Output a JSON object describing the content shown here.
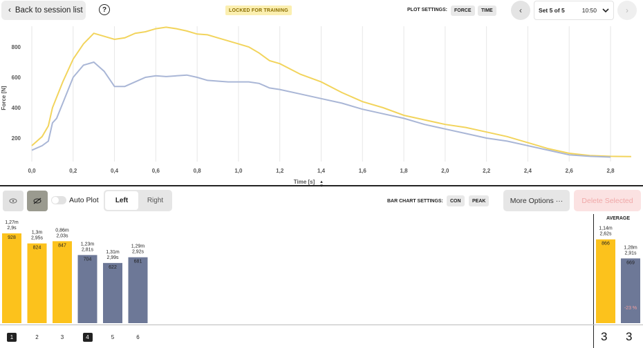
{
  "header": {
    "back_label": "Back to session list",
    "help_icon": "?",
    "locked_label": "LOCKED FOR TRAINING",
    "plot_settings_label": "PLOT SETTINGS:",
    "plot_chips": [
      "FORCE",
      "TIME"
    ],
    "set_label": "Set 5 of 5",
    "set_time": "10:50"
  },
  "chart_data": {
    "type": "line",
    "xlabel": "Time [s]",
    "ylabel": "Force [N]",
    "xlim": [
      0,
      2.9
    ],
    "ylim": [
      0,
      1000
    ],
    "x_ticks": [
      "0,0",
      "0,2",
      "0,4",
      "0,6",
      "0,8",
      "1,0",
      "1,2",
      "1,4",
      "1,6",
      "1,8",
      "2,0",
      "2,2",
      "2,4",
      "2,6",
      "2,8"
    ],
    "y_ticks": [
      "200",
      "400",
      "600",
      "800"
    ],
    "grid": "vertical",
    "series": [
      {
        "color": "#f2d45c",
        "x": [
          0.0,
          0.05,
          0.08,
          0.1,
          0.15,
          0.2,
          0.25,
          0.3,
          0.35,
          0.4,
          0.45,
          0.5,
          0.55,
          0.6,
          0.65,
          0.7,
          0.75,
          0.8,
          0.85,
          0.9,
          0.95,
          1.0,
          1.05,
          1.1,
          1.15,
          1.2,
          1.3,
          1.4,
          1.5,
          1.6,
          1.7,
          1.8,
          1.9,
          2.0,
          2.1,
          2.2,
          2.3,
          2.4,
          2.5,
          2.6,
          2.7,
          2.8,
          2.9
        ],
        "y": [
          150,
          210,
          280,
          400,
          570,
          720,
          820,
          890,
          870,
          850,
          860,
          890,
          900,
          920,
          930,
          920,
          905,
          885,
          880,
          860,
          840,
          820,
          800,
          760,
          710,
          690,
          620,
          570,
          500,
          440,
          400,
          350,
          320,
          290,
          270,
          240,
          210,
          170,
          130,
          100,
          85,
          80,
          78
        ]
      },
      {
        "color": "#a9b6d6",
        "x": [
          0.0,
          0.05,
          0.08,
          0.1,
          0.12,
          0.15,
          0.2,
          0.25,
          0.3,
          0.35,
          0.4,
          0.45,
          0.5,
          0.55,
          0.6,
          0.65,
          0.7,
          0.75,
          0.8,
          0.85,
          0.9,
          0.95,
          1.0,
          1.05,
          1.1,
          1.15,
          1.2,
          1.3,
          1.4,
          1.5,
          1.6,
          1.7,
          1.8,
          1.9,
          2.0,
          2.1,
          2.2,
          2.3,
          2.4,
          2.5,
          2.6,
          2.7,
          2.8
        ],
        "y": [
          120,
          150,
          180,
          300,
          330,
          430,
          600,
          680,
          700,
          640,
          540,
          540,
          570,
          600,
          610,
          605,
          610,
          615,
          600,
          580,
          575,
          570,
          570,
          570,
          560,
          530,
          520,
          490,
          460,
          430,
          390,
          360,
          330,
          290,
          260,
          230,
          200,
          180,
          150,
          120,
          90,
          80,
          75
        ]
      }
    ]
  },
  "toolbar": {
    "auto_plot_label": "Auto Plot",
    "seg_left": "Left",
    "seg_right": "Right",
    "bar_settings_label": "BAR CHART SETTINGS:",
    "bar_chips": [
      "CON",
      "PEAK"
    ],
    "more_options_label": "More Options ···",
    "delete_label": "Delete Selected"
  },
  "bars": {
    "max_value": 928,
    "reps": [
      {
        "num": "1",
        "dist": "1,27m",
        "time": "2,9s",
        "value": 928,
        "color": "#fcc21c",
        "selected": true
      },
      {
        "num": "2",
        "dist": "1,3m",
        "time": "2,95s",
        "value": 824,
        "color": "#fcc21c",
        "selected": false
      },
      {
        "num": "3",
        "dist": "0,86m",
        "time": "2,03s",
        "value": 847,
        "color": "#fcc21c",
        "selected": false
      },
      {
        "num": "4",
        "dist": "1,23m",
        "time": "2,81s",
        "value": 704,
        "color": "#6d7897",
        "selected": true
      },
      {
        "num": "5",
        "dist": "1,31m",
        "time": "2,99s",
        "value": 622,
        "color": "#6d7897",
        "selected": false
      },
      {
        "num": "6",
        "dist": "1,29m",
        "time": "2,92s",
        "value": 681,
        "color": "#6d7897",
        "selected": false
      }
    ]
  },
  "average": {
    "title": "AVERAGE",
    "left": {
      "dist": "1,14m",
      "time": "2,62s",
      "value": 866,
      "color": "#fcc21c",
      "count": "3"
    },
    "right": {
      "dist": "1,28m",
      "time": "2,91s",
      "value": 669,
      "color": "#6d7897",
      "count": "3",
      "diff": "-23 %"
    }
  }
}
